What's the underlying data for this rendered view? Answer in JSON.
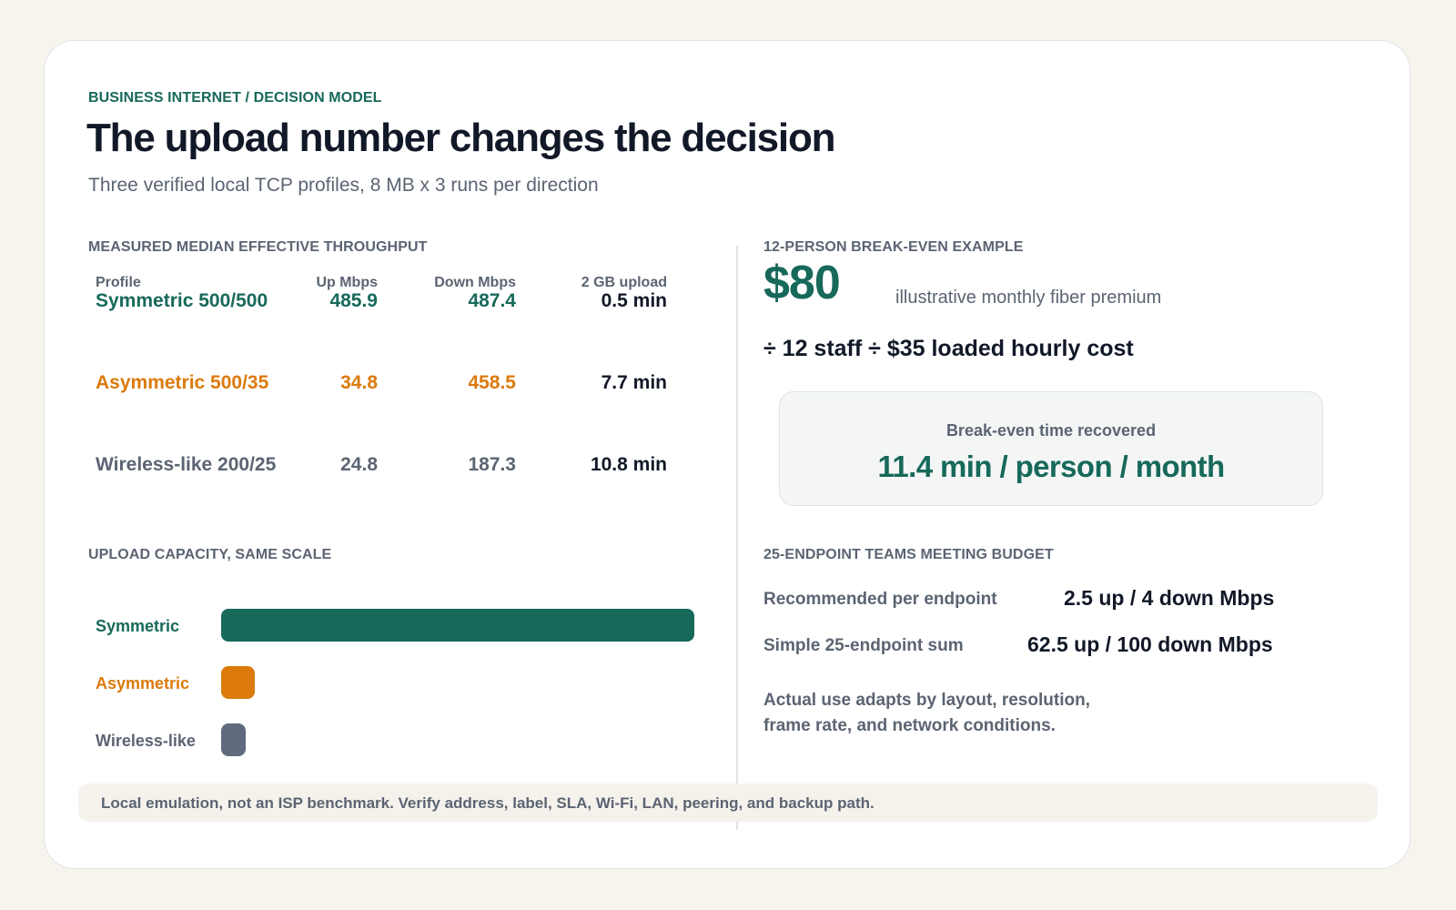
{
  "header": {
    "eyebrow": "BUSINESS INTERNET / DECISION MODEL",
    "title": "The upload number changes the decision",
    "subtitle": "Three verified local TCP profiles, 8 MB x 3 runs per direction"
  },
  "throughput": {
    "section_label": "MEASURED MEDIAN EFFECTIVE THROUGHPUT",
    "columns": [
      "Profile",
      "Up Mbps",
      "Down Mbps",
      "2 GB upload"
    ],
    "rows": [
      {
        "profile": "Symmetric 500/500",
        "up": "485.9",
        "down": "487.4",
        "upload_time": "0.5 min",
        "color": "#17695a"
      },
      {
        "profile": "Asymmetric 500/35",
        "up": "34.8",
        "down": "458.5",
        "upload_time": "7.7 min",
        "color": "#dc7a0b"
      },
      {
        "profile": "Wireless-like 200/25",
        "up": "24.8",
        "down": "187.3",
        "upload_time": "10.8 min",
        "color": "#5b6472"
      }
    ]
  },
  "upload_chart": {
    "section_label": "UPLOAD CAPACITY, SAME SCALE",
    "bars": [
      {
        "label": "Symmetric",
        "value": 485.9,
        "color": "#17695a"
      },
      {
        "label": "Asymmetric",
        "value": 34.8,
        "color": "#dc7a0b"
      },
      {
        "label": "Wireless-like",
        "value": 24.8,
        "color": "#5f6a7d"
      }
    ],
    "max": 485.9
  },
  "break_even": {
    "section_label": "12-PERSON BREAK-EVEN EXAMPLE",
    "price": "$80",
    "price_note": "illustrative monthly fiber premium",
    "formula": "÷ 12 staff ÷ $35 loaded hourly cost",
    "result_label": "Break-even time recovered",
    "result_value": "11.4 min / person / month"
  },
  "teams": {
    "section_label": "25-ENDPOINT TEAMS MEETING BUDGET",
    "items": [
      {
        "label": "Recommended per endpoint",
        "value": "2.5 up / 4 down Mbps"
      },
      {
        "label": "Simple 25-endpoint sum",
        "value": "62.5 up / 100 down Mbps"
      }
    ],
    "note_lines": [
      "Actual use adapts by layout, resolution,",
      "frame rate, and network conditions."
    ]
  },
  "footer": {
    "text": "Local emulation, not an ISP benchmark. Verify address, label, SLA, Wi-Fi, LAN, peering, and backup path."
  }
}
